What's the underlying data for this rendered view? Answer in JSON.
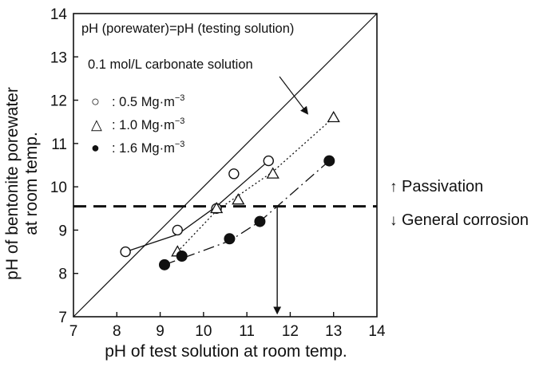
{
  "chart_data": {
    "type": "scatter",
    "xlabel": "pH of test solution at room temp.",
    "ylabel_lines": [
      "pH of bentonite porewater",
      "at room temp."
    ],
    "xlim": [
      7,
      14
    ],
    "ylim": [
      7,
      14
    ],
    "xticks": [
      "7",
      "8",
      "9",
      "10",
      "11",
      "12",
      "13",
      "14"
    ],
    "yticks": [
      "7",
      "8",
      "9",
      "10",
      "11",
      "12",
      "13",
      "14"
    ],
    "grid": false,
    "legend_position": "top-left",
    "legend": [
      {
        "marker_text": "○",
        "label": ": 0.5 Mg·m",
        "sup": "−3"
      },
      {
        "marker_text": "△",
        "label": ": 1.0 Mg·m",
        "sup": "−3"
      },
      {
        "marker_text": "●",
        "label": ": 1.6 Mg·m",
        "sup": "−3"
      }
    ],
    "series": [
      {
        "name": "0.5 Mg·m−3",
        "marker": "open-circle",
        "x": [
          8.2,
          9.4,
          10.3,
          10.7,
          11.5
        ],
        "y": [
          8.5,
          9.0,
          9.5,
          10.3,
          10.6
        ],
        "trend": {
          "style": "solid",
          "x": [
            8.2,
            9.4,
            10.3,
            11.5
          ],
          "y": [
            8.5,
            8.9,
            9.55,
            10.6
          ]
        }
      },
      {
        "name": "1.0 Mg·m−3",
        "marker": "open-triangle",
        "x": [
          9.4,
          10.3,
          10.8,
          11.6,
          13.0
        ],
        "y": [
          8.5,
          9.5,
          9.7,
          10.3,
          11.6
        ],
        "trend": {
          "style": "dotted",
          "x": [
            9.4,
            10.3,
            11.6,
            13.0
          ],
          "y": [
            8.5,
            9.45,
            10.35,
            11.6
          ]
        }
      },
      {
        "name": "1.6 Mg·m−3",
        "marker": "filled-circle",
        "x": [
          9.1,
          9.5,
          10.6,
          11.3,
          12.9
        ],
        "y": [
          8.2,
          8.4,
          8.8,
          9.2,
          10.6
        ],
        "trend": {
          "style": "dash-dot",
          "x": [
            9.1,
            10.6,
            11.3,
            12.9
          ],
          "y": [
            8.2,
            8.75,
            9.2,
            10.6
          ]
        }
      }
    ],
    "reference_line": {
      "x": [
        7,
        14
      ],
      "y": [
        7,
        14
      ]
    },
    "threshold": {
      "y": 9.55,
      "x_end": 14.0
    },
    "drop_arrow": {
      "x": 11.7,
      "y_from": 9.55,
      "y_to": 7.05
    },
    "annotations": {
      "equality": "pH (porewater)=pH (testing solution)",
      "carbonate": "0.1 mol/L carbonate solution",
      "passivation": "Passivation",
      "corrosion": "General corrosion",
      "passivation_arrow": "↑",
      "corrosion_arrow": "↓"
    }
  }
}
